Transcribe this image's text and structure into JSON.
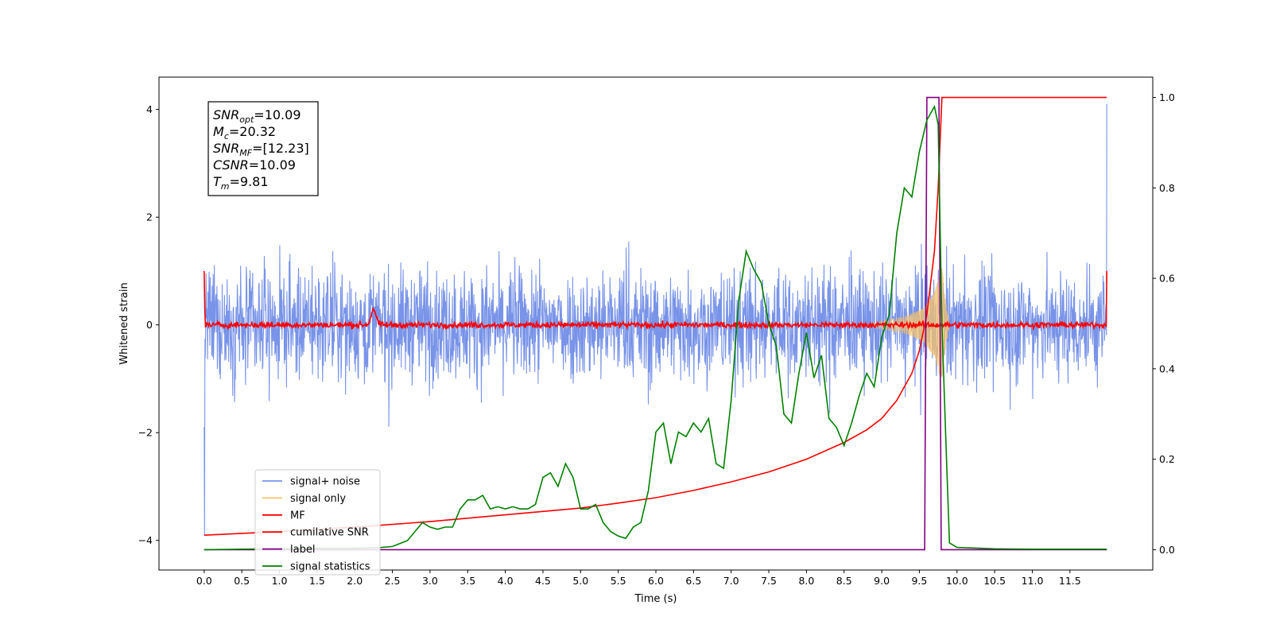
{
  "chart_data": {
    "type": "line",
    "xlabel": "Time (s)",
    "ylabel": "Whitened strain",
    "xlim": [
      -0.6,
      12.6
    ],
    "ylim": [
      -4.55,
      4.6
    ],
    "y2lim": [
      -0.045,
      1.045
    ],
    "grid": false,
    "legend_placement": "lower-left",
    "x_ticks": [
      "0.0",
      "0.5",
      "1.0",
      "1.5",
      "2.0",
      "2.5",
      "3.0",
      "3.5",
      "4.0",
      "4.5",
      "5.0",
      "5.5",
      "6.0",
      "6.5",
      "7.0",
      "7.5",
      "8.0",
      "8.5",
      "9.0",
      "9.5",
      "10.0",
      "10.5",
      "11.0",
      "11.5"
    ],
    "y_ticks": [
      "4",
      "2",
      "0",
      "−2",
      "−4"
    ],
    "y2_ticks": [
      "1.0",
      "0.8",
      "0.6",
      "0.4",
      "0.2",
      "0.0"
    ],
    "annotation": {
      "lines": [
        {
          "base": "SNR",
          "sub": "opt",
          "value": "=10.09"
        },
        {
          "base": "M",
          "sub": "c",
          "value": "=20.32"
        },
        {
          "base": "SNR",
          "sub": "MF",
          "value": "=[12.23]"
        },
        {
          "base": "CSNR",
          "sub": "",
          "value": "=10.09"
        },
        {
          "base": "T",
          "sub": "m",
          "value": "=9.81"
        }
      ]
    },
    "series": [
      {
        "name": "signal+ noise",
        "color": "#7893e8",
        "axis": "left",
        "noise_amplitude": 1.4,
        "x_range": [
          0.0,
          11.99
        ]
      },
      {
        "name": "signal only",
        "color": "#f6c26b",
        "axis": "left",
        "envelope": [
          [
            8.9,
            0.05
          ],
          [
            9.3,
            0.15
          ],
          [
            9.55,
            0.3
          ],
          [
            9.7,
            0.6
          ],
          [
            9.8,
            1.1
          ],
          [
            9.85,
            0.4
          ],
          [
            9.9,
            0.0
          ]
        ]
      },
      {
        "name": "MF",
        "color": "#ff0000",
        "axis": "left",
        "noise_amplitude": 0.08,
        "peak": {
          "x": 2.25,
          "y": 0.3
        },
        "x_range": [
          0.0,
          11.99
        ]
      },
      {
        "name": "cumilative SNR",
        "color": "#ff0000",
        "axis": "right",
        "x": [
          0.0,
          1.0,
          2.0,
          3.0,
          4.0,
          5.0,
          5.5,
          6.0,
          6.5,
          7.0,
          7.5,
          8.0,
          8.5,
          8.8,
          9.0,
          9.2,
          9.4,
          9.5,
          9.6,
          9.7,
          9.75,
          9.8,
          11.99
        ],
        "values": [
          0.032,
          0.04,
          0.05,
          0.062,
          0.077,
          0.092,
          0.103,
          0.115,
          0.131,
          0.15,
          0.172,
          0.2,
          0.237,
          0.265,
          0.29,
          0.33,
          0.39,
          0.44,
          0.52,
          0.66,
          0.8,
          1.0,
          1.0
        ]
      },
      {
        "name": "label",
        "color": "#800080",
        "axis": "right",
        "x": [
          0.0,
          9.57,
          9.6,
          9.76,
          9.79,
          11.99
        ],
        "values": [
          0.0,
          0.0,
          1.0,
          1.0,
          0.0,
          0.0
        ]
      },
      {
        "name": "signal statistics",
        "color": "#008000",
        "axis": "right",
        "x": [
          0.0,
          0.5,
          1.0,
          1.5,
          2.0,
          2.3,
          2.5,
          2.7,
          2.9,
          3.0,
          3.1,
          3.2,
          3.3,
          3.4,
          3.5,
          3.6,
          3.7,
          3.8,
          3.9,
          4.0,
          4.1,
          4.2,
          4.3,
          4.4,
          4.5,
          4.6,
          4.7,
          4.8,
          4.9,
          5.0,
          5.1,
          5.2,
          5.3,
          5.4,
          5.5,
          5.6,
          5.7,
          5.8,
          5.9,
          6.0,
          6.1,
          6.2,
          6.3,
          6.4,
          6.5,
          6.6,
          6.7,
          6.8,
          6.9,
          7.0,
          7.1,
          7.2,
          7.3,
          7.4,
          7.5,
          7.6,
          7.7,
          7.8,
          7.9,
          8.0,
          8.1,
          8.2,
          8.3,
          8.4,
          8.5,
          8.6,
          8.7,
          8.8,
          8.9,
          9.0,
          9.1,
          9.2,
          9.3,
          9.4,
          9.5,
          9.6,
          9.7,
          9.75,
          9.8,
          9.85,
          9.9,
          10.0,
          10.5,
          11.0,
          11.5,
          11.99
        ],
        "values": [
          0.0,
          0.001,
          0.002,
          0.003,
          0.003,
          0.004,
          0.007,
          0.02,
          0.06,
          0.05,
          0.045,
          0.05,
          0.05,
          0.09,
          0.11,
          0.11,
          0.12,
          0.09,
          0.095,
          0.09,
          0.095,
          0.09,
          0.09,
          0.1,
          0.16,
          0.17,
          0.14,
          0.19,
          0.16,
          0.09,
          0.09,
          0.1,
          0.06,
          0.04,
          0.03,
          0.025,
          0.05,
          0.06,
          0.13,
          0.26,
          0.28,
          0.19,
          0.26,
          0.25,
          0.28,
          0.26,
          0.29,
          0.19,
          0.18,
          0.33,
          0.55,
          0.66,
          0.62,
          0.59,
          0.5,
          0.45,
          0.3,
          0.28,
          0.39,
          0.48,
          0.38,
          0.43,
          0.29,
          0.27,
          0.23,
          0.28,
          0.34,
          0.39,
          0.36,
          0.47,
          0.52,
          0.7,
          0.8,
          0.78,
          0.88,
          0.95,
          0.98,
          0.94,
          0.5,
          0.25,
          0.015,
          0.005,
          0.002,
          0.001,
          0.001,
          0.001
        ]
      }
    ]
  }
}
